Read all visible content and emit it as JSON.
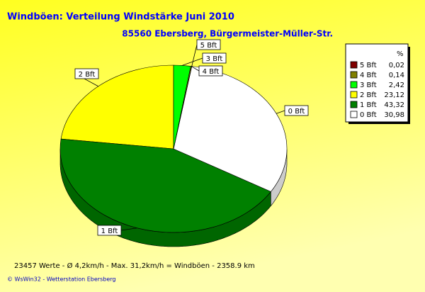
{
  "chart_data": {
    "type": "pie3d",
    "title": "Windböen: Verteilung Windstärke  Juni 2010",
    "subtitle": "85560 Ebersberg, Bürgermeister-Müller-Str.",
    "legend_header": "%",
    "categories": [
      "5 Bft",
      "4 Bft",
      "3 Bft",
      "2 Bft",
      "1 Bft",
      "0 Bft"
    ],
    "values": [
      0.02,
      0.14,
      2.42,
      23.12,
      43.32,
      30.98
    ],
    "value_labels": [
      "0,02",
      "0,14",
      "2,42",
      "23,12",
      "43,32",
      "30,98"
    ],
    "colors": [
      "#800000",
      "#808000",
      "#00ff00",
      "#ffff00",
      "#008000",
      "#ffffff"
    ],
    "legend": "right",
    "footer": "23457 Werte   -   Ø 4,2km/h  -  Max. 31,2km/h = Windböen   -   2358.9 km",
    "credit": "© WsWin32  -  Wetterstation Ebersberg"
  }
}
